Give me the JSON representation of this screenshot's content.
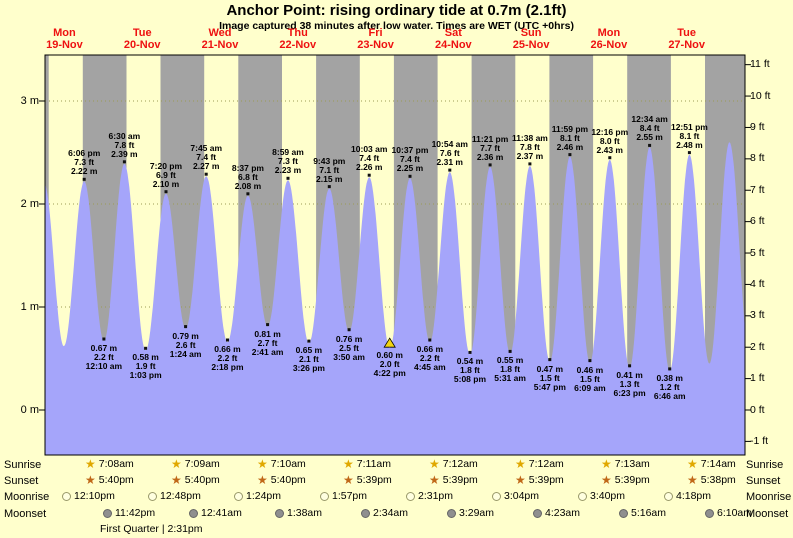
{
  "title": "Anchor Point: rising ordinary tide at 0.7m (2.1ft)",
  "subtitle": "Image captured 38 minutes after low water. Times are WET (UTC +0hrs)",
  "colors": {
    "page_bg": "#ffffcc",
    "day_band": "#ffffcc",
    "night_band": "#a3a3a3",
    "tide_fill": "#a5a5fa",
    "day_label": "#ee1111",
    "grid": "#9b9b55",
    "marker_dot": "#111111",
    "now_triangle": "#f2d410",
    "sunrise_star": "#e0a800",
    "sunset_star": "#c06818",
    "moonrise_icon": "#ffffe0",
    "moonset_icon": "#8f8f8f"
  },
  "chart_data": {
    "type": "area",
    "title": "Anchor Point: rising ordinary tide at 0.7m (2.1ft)",
    "timezone_note": "Times are WET (UTC +0hrs)",
    "current_tide": {
      "height_m": 0.7,
      "height_ft": 2.1,
      "state": "rising",
      "nearest_low_time": "4:22 pm"
    },
    "x_range_hours_from_mon_midnight": [
      6,
      222
    ],
    "ylim_m": [
      -0.44,
      3.45
    ],
    "days": [
      {
        "dow": "Mon",
        "date": "19-Nov"
      },
      {
        "dow": "Tue",
        "date": "20-Nov"
      },
      {
        "dow": "Wed",
        "date": "21-Nov"
      },
      {
        "dow": "Thu",
        "date": "22-Nov"
      },
      {
        "dow": "Fri",
        "date": "23-Nov"
      },
      {
        "dow": "Sat",
        "date": "24-Nov"
      },
      {
        "dow": "Sun",
        "date": "25-Nov"
      },
      {
        "dow": "Mon",
        "date": "26-Nov"
      },
      {
        "dow": "Tue",
        "date": "27-Nov"
      }
    ],
    "y_axis_left": {
      "unit": "m",
      "ticks": [
        "0 m",
        "1 m",
        "2 m",
        "3 m"
      ]
    },
    "y_axis_right": {
      "unit": "ft",
      "ticks": [
        "-1 ft",
        "0 ft",
        "1 ft",
        "2 ft",
        "3 ft",
        "4 ft",
        "5 ft",
        "6 ft",
        "7 ft",
        "8 ft",
        "9 ft",
        "10 ft",
        "11 ft"
      ]
    },
    "tide_events": [
      {
        "t": 5.75,
        "h": 2.2,
        "kind": "high",
        "show": false,
        "estimated": true
      },
      {
        "t": 11.8,
        "h": 0.62,
        "kind": "low",
        "show": false,
        "estimated": true
      },
      {
        "t": 18.1,
        "h": 2.22,
        "kind": "high",
        "show": true,
        "time": "6:06 pm",
        "ft": "7.3 ft",
        "m": "2.22 m"
      },
      {
        "t": 24.17,
        "h": 0.67,
        "kind": "low",
        "show": true,
        "time": "12:10 am",
        "ft": "2.2 ft",
        "m": "0.67 m"
      },
      {
        "t": 30.5,
        "h": 2.39,
        "kind": "high",
        "show": true,
        "time": "6:30 am",
        "ft": "7.8 ft",
        "m": "2.39 m"
      },
      {
        "t": 37.05,
        "h": 0.58,
        "kind": "low",
        "show": true,
        "time": "1:03 pm",
        "ft": "1.9 ft",
        "m": "0.58 m"
      },
      {
        "t": 43.33,
        "h": 2.1,
        "kind": "high",
        "show": true,
        "time": "7:20 pm",
        "ft": "6.9 ft",
        "m": "2.10 m"
      },
      {
        "t": 49.4,
        "h": 0.79,
        "kind": "low",
        "show": true,
        "time": "1:24 am",
        "ft": "2.6 ft",
        "m": "0.79 m"
      },
      {
        "t": 55.75,
        "h": 2.27,
        "kind": "high",
        "show": true,
        "time": "7:45 am",
        "ft": "7.4 ft",
        "m": "2.27 m"
      },
      {
        "t": 62.3,
        "h": 0.66,
        "kind": "low",
        "show": true,
        "time": "2:18 pm",
        "ft": "2.2 ft",
        "m": "0.66 m"
      },
      {
        "t": 68.62,
        "h": 2.08,
        "kind": "high",
        "show": true,
        "time": "8:37 pm",
        "ft": "6.8 ft",
        "m": "2.08 m"
      },
      {
        "t": 74.68,
        "h": 0.81,
        "kind": "low",
        "show": true,
        "time": "2:41 am",
        "ft": "2.7 ft",
        "m": "0.81 m"
      },
      {
        "t": 80.98,
        "h": 2.23,
        "kind": "high",
        "show": true,
        "time": "8:59 am",
        "ft": "7.3 ft",
        "m": "2.23 m"
      },
      {
        "t": 87.43,
        "h": 0.65,
        "kind": "low",
        "show": true,
        "time": "3:26 pm",
        "ft": "2.1 ft",
        "m": "0.65 m"
      },
      {
        "t": 93.72,
        "h": 2.15,
        "kind": "high",
        "show": true,
        "time": "9:43 pm",
        "ft": "7.1 ft",
        "m": "2.15 m"
      },
      {
        "t": 99.83,
        "h": 0.76,
        "kind": "low",
        "show": true,
        "time": "3:50 am",
        "ft": "2.5 ft",
        "m": "0.76 m"
      },
      {
        "t": 106.05,
        "h": 2.26,
        "kind": "high",
        "show": true,
        "time": "10:03 am",
        "ft": "7.4 ft",
        "m": "2.26 m"
      },
      {
        "t": 112.37,
        "h": 0.6,
        "kind": "low",
        "show": true,
        "time": "4:22 pm",
        "ft": "2.0 ft",
        "m": "0.60 m",
        "now": true
      },
      {
        "t": 118.62,
        "h": 2.25,
        "kind": "high",
        "show": true,
        "time": "10:37 pm",
        "ft": "7.4 ft",
        "m": "2.25 m"
      },
      {
        "t": 124.75,
        "h": 0.66,
        "kind": "low",
        "show": true,
        "time": "4:45 am",
        "ft": "2.2 ft",
        "m": "0.66 m"
      },
      {
        "t": 130.9,
        "h": 2.31,
        "kind": "high",
        "show": true,
        "time": "10:54 am",
        "ft": "7.6 ft",
        "m": "2.31 m"
      },
      {
        "t": 137.13,
        "h": 0.54,
        "kind": "low",
        "show": true,
        "time": "5:08 pm",
        "ft": "1.8 ft",
        "m": "0.54 m"
      },
      {
        "t": 143.35,
        "h": 2.36,
        "kind": "high",
        "show": true,
        "time": "11:21 pm",
        "ft": "7.7 ft",
        "m": "2.36 m"
      },
      {
        "t": 149.52,
        "h": 0.55,
        "kind": "low",
        "show": true,
        "time": "5:31 am",
        "ft": "1.8 ft",
        "m": "0.55 m"
      },
      {
        "t": 155.63,
        "h": 2.37,
        "kind": "high",
        "show": true,
        "time": "11:38 am",
        "ft": "7.8 ft",
        "m": "2.37 m"
      },
      {
        "t": 161.78,
        "h": 0.47,
        "kind": "low",
        "show": true,
        "time": "5:47 pm",
        "ft": "1.5 ft",
        "m": "0.47 m"
      },
      {
        "t": 167.98,
        "h": 2.46,
        "kind": "high",
        "show": true,
        "time": "11:59 pm",
        "ft": "8.1 ft",
        "m": "2.46 m"
      },
      {
        "t": 174.15,
        "h": 0.46,
        "kind": "low",
        "show": true,
        "time": "6:09 am",
        "ft": "1.5 ft",
        "m": "0.46 m"
      },
      {
        "t": 180.27,
        "h": 2.43,
        "kind": "high",
        "show": true,
        "time": "12:16 pm",
        "ft": "8.0 ft",
        "m": "2.43 m"
      },
      {
        "t": 186.38,
        "h": 0.41,
        "kind": "low",
        "show": true,
        "time": "6:23 pm",
        "ft": "1.3 ft",
        "m": "0.41 m"
      },
      {
        "t": 192.57,
        "h": 2.55,
        "kind": "high",
        "show": true,
        "time": "12:34 am",
        "ft": "8.4 ft",
        "m": "2.55 m"
      },
      {
        "t": 198.77,
        "h": 0.38,
        "kind": "low",
        "show": true,
        "time": "6:46 am",
        "ft": "1.2 ft",
        "m": "0.38 m"
      },
      {
        "t": 204.85,
        "h": 2.48,
        "kind": "high",
        "show": true,
        "time": "12:51 pm",
        "ft": "8.1 ft",
        "m": "2.48 m"
      },
      {
        "t": 211.0,
        "h": 0.45,
        "kind": "low",
        "show": false,
        "estimated": true
      },
      {
        "t": 217.2,
        "h": 2.6,
        "kind": "high",
        "show": false,
        "estimated": true
      },
      {
        "t": 223.5,
        "h": 0.5,
        "kind": "low",
        "show": false,
        "estimated": true
      }
    ]
  },
  "almanac": {
    "rows": [
      {
        "id": "sunrise",
        "label": "Sunrise",
        "icon": "star",
        "times": [
          "7:08am",
          "7:09am",
          "7:10am",
          "7:11am",
          "7:12am",
          "7:12am",
          "7:13am",
          "7:14am"
        ]
      },
      {
        "id": "sunset",
        "label": "Sunset",
        "icon": "star",
        "times": [
          "5:40pm",
          "5:40pm",
          "5:40pm",
          "5:39pm",
          "5:39pm",
          "5:39pm",
          "5:39pm",
          "5:38pm"
        ]
      },
      {
        "id": "moonrise",
        "label": "Moonrise",
        "icon": "circle",
        "times": [
          "12:10pm",
          "12:48pm",
          "1:24pm",
          "1:57pm",
          "2:31pm",
          "3:04pm",
          "3:40pm",
          "4:18pm"
        ]
      },
      {
        "id": "moonset",
        "label": "Moonset",
        "icon": "circle",
        "times": [
          "11:42pm",
          "12:41am",
          "1:38am",
          "2:34am",
          "3:29am",
          "4:23am",
          "5:16am",
          "6:10am"
        ]
      }
    ],
    "note": "First Quarter | 2:31pm"
  }
}
